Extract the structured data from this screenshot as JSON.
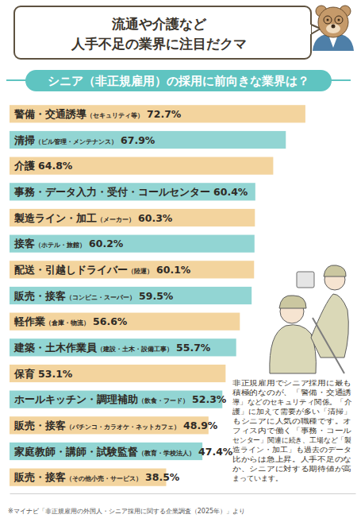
{
  "chart_data": {
    "type": "bar",
    "orientation": "horizontal",
    "subtitle": [
      "流通や介護など",
      "人手不足の業界に注目だクマ"
    ],
    "title": "シニア（非正規雇用）の採用に前向きな業界は？",
    "categories": [
      "警備・交通誘導（セキュリティ等）",
      "清掃（ビル管理・メンテナンス）",
      "介護",
      "事務・データ入力・受付・コールセンター",
      "製造ライン・加工（メーカー）",
      "接客（ホテル・旅館）",
      "配送・引越しドライバー（陸運）",
      "販売・接客（コンビニ・スーパー）",
      "軽作業（倉庫・物流）",
      "建築・土木作業員（建設・土木・設備工事）",
      "保育",
      "ホールキッチン・調理補助（飲食・フード）",
      "販売・接客（パチンコ・カラオケ・ネットカフェ）",
      "家庭教師・講師・試験監督（教育・学校法人）",
      "販売・接客（その他小売・サービス）"
    ],
    "values": [
      72.7,
      67.9,
      64.8,
      60.4,
      60.3,
      60.2,
      60.1,
      59.5,
      56.6,
      55.7,
      53.1,
      52.3,
      48.9,
      47.4,
      38.5
    ],
    "value_labels": [
      "72.7%",
      "67.9%",
      "64.8%",
      "60.4%",
      "60.3%",
      "60.2%",
      "60.1%",
      "59.5%",
      "56.6%",
      "55.7%",
      "53.1%",
      "52.3%",
      "48.9%",
      "47.4%",
      "38.5%"
    ],
    "colors": [
      "#f3d49e",
      "#92d5d3",
      "#f3d49e",
      "#92d5d3",
      "#f3d49e",
      "#92d5d3",
      "#f3d49e",
      "#92d5d3",
      "#f3d49e",
      "#92d5d3",
      "#f3d49e",
      "#92d5d3",
      "#f3d49e",
      "#92d5d3",
      "#f3d49e"
    ],
    "data_labels": true,
    "tick_labels": false,
    "grid": false,
    "xlim": [
      0,
      85
    ],
    "annotations": [
      "非正規雇用でシニア採用に最も",
      "積極的なのが、「警備・交通誘",
      "導」などのセキュリティ関係。「介",
      "護」に加えて需要が多い「清掃」",
      "もシニアに人気の職種です。オ",
      "フィス内で働く「事務・コール",
      "センター」関連に続き、工場など「製",
      "造ライン・加工」も過去のデータ",
      "比からは急上昇。人手不足のな",
      "か、シニアに対する期待値が高",
      "まっています。"
    ],
    "source": "※マイナビ「非正規雇用の外国人・シニア採用に関する企業調査（2025年）」より"
  }
}
